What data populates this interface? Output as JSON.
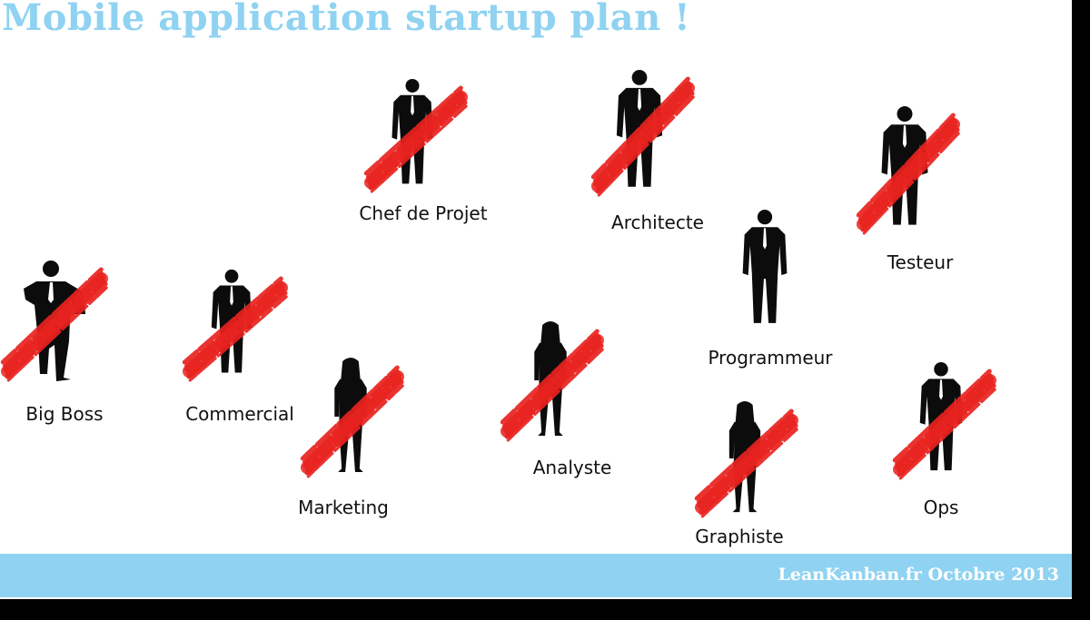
{
  "slide": {
    "title": "Mobile application startup plan !",
    "footer": "LeanKanban.fr Octobre 2013",
    "colors": {
      "accent": "#8fd2f1",
      "cross": "#e8231f",
      "silhouette": "#0c0c0c"
    }
  },
  "roles": [
    {
      "id": "chef-de-projet",
      "label": "Chef de Projet",
      "crossed": true,
      "icon": "businessman-silhouette-icon"
    },
    {
      "id": "architecte",
      "label": "Architecte",
      "crossed": true,
      "icon": "businessman-silhouette-icon"
    },
    {
      "id": "testeur",
      "label": "Testeur",
      "crossed": true,
      "icon": "businessman-silhouette-icon"
    },
    {
      "id": "programmeur",
      "label": "Programmeur",
      "crossed": false,
      "icon": "businessman-silhouette-icon"
    },
    {
      "id": "big-boss",
      "label": "Big Boss",
      "crossed": true,
      "icon": "businessman-leaning-silhouette-icon"
    },
    {
      "id": "commercial",
      "label": "Commercial",
      "crossed": true,
      "icon": "businessman-silhouette-icon"
    },
    {
      "id": "marketing",
      "label": "Marketing",
      "crossed": true,
      "icon": "businesswoman-silhouette-icon"
    },
    {
      "id": "analyste",
      "label": "Analyste",
      "crossed": true,
      "icon": "businesswoman-silhouette-icon"
    },
    {
      "id": "graphiste",
      "label": "Graphiste",
      "crossed": true,
      "icon": "businesswoman-phone-silhouette-icon"
    },
    {
      "id": "ops",
      "label": "Ops",
      "crossed": true,
      "icon": "businessman-silhouette-icon"
    }
  ]
}
